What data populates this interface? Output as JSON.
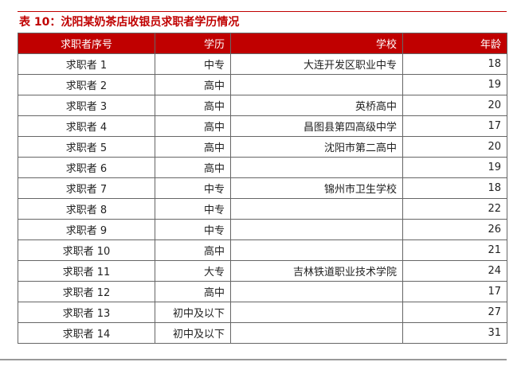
{
  "title": "表 10：沈阳某奶茶店收银员求职者学历情况",
  "colors": {
    "accent": "#c00000"
  },
  "table": {
    "headers": [
      "求职者序号",
      "学历",
      "学校",
      "年龄"
    ],
    "rows": [
      [
        "求职者 1",
        "中专",
        "大连开发区职业中专",
        "18"
      ],
      [
        "求职者 2",
        "高中",
        "",
        "19"
      ],
      [
        "求职者 3",
        "高中",
        "英桥高中",
        "20"
      ],
      [
        "求职者 4",
        "高中",
        "昌图县第四高级中学",
        "17"
      ],
      [
        "求职者 5",
        "高中",
        "沈阳市第二高中",
        "20"
      ],
      [
        "求职者 6",
        "高中",
        "",
        "19"
      ],
      [
        "求职者 7",
        "中专",
        "锦州市卫生学校",
        "18"
      ],
      [
        "求职者 8",
        "中专",
        "",
        "22"
      ],
      [
        "求职者 9",
        "中专",
        "",
        "26"
      ],
      [
        "求职者 10",
        "高中",
        "",
        "21"
      ],
      [
        "求职者 11",
        "大专",
        "吉林铁道职业技术学院",
        "24"
      ],
      [
        "求职者 12",
        "高中",
        "",
        "17"
      ],
      [
        "求职者 13",
        "初中及以下",
        "",
        "27"
      ],
      [
        "求职者 14",
        "初中及以下",
        "",
        "31"
      ]
    ]
  }
}
